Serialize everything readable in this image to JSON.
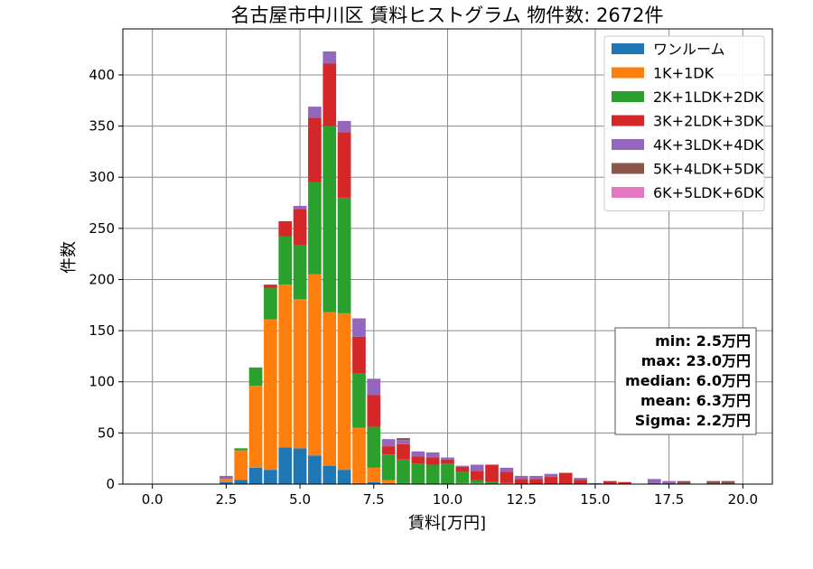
{
  "chart_data": {
    "type": "bar",
    "stacked": true,
    "title": "名古屋市中川区 賃料ヒストグラム 物件数: 2672件",
    "xlabel": "賃料[万円]",
    "ylabel": "件数",
    "xlim": [
      -1.0,
      21.0
    ],
    "ylim": [
      0,
      445
    ],
    "xticks": [
      0.0,
      2.5,
      5.0,
      7.5,
      10.0,
      12.5,
      15.0,
      17.5,
      20.0
    ],
    "xtick_labels": [
      "0.0",
      "2.5",
      "5.0",
      "7.5",
      "10.0",
      "12.5",
      "15.0",
      "17.5",
      "20.0"
    ],
    "yticks": [
      0,
      50,
      100,
      150,
      200,
      250,
      300,
      350,
      400
    ],
    "ytick_labels": [
      "0",
      "50",
      "100",
      "150",
      "200",
      "250",
      "300",
      "350",
      "400"
    ],
    "grid": true,
    "legend_position": "top-right",
    "bin_width": 0.5,
    "x": [
      2.5,
      3.0,
      3.5,
      4.0,
      4.5,
      5.0,
      5.5,
      6.0,
      6.5,
      7.0,
      7.5,
      8.0,
      8.5,
      9.0,
      9.5,
      10.0,
      10.5,
      11.0,
      11.5,
      12.0,
      12.5,
      13.0,
      13.5,
      14.0,
      14.5,
      15.0,
      15.5,
      16.0,
      16.5,
      17.0,
      17.5,
      18.0,
      18.5,
      19.0,
      19.5,
      20.0
    ],
    "series": [
      {
        "name": "ワンルーム",
        "color": "#1f77b4",
        "values": [
          2,
          4,
          16,
          14,
          36,
          35,
          28,
          18,
          14,
          1,
          2,
          1,
          1,
          0,
          0,
          0,
          0,
          0,
          0,
          0,
          0,
          0,
          0,
          0,
          0,
          0,
          0,
          0,
          0,
          0,
          0,
          0,
          0,
          0,
          0,
          0
        ]
      },
      {
        "name": "1K+1DK",
        "color": "#ff7f0e",
        "values": [
          3,
          29,
          80,
          147,
          159,
          146,
          177,
          150,
          153,
          54,
          14,
          3,
          0,
          0,
          0,
          0,
          1,
          1,
          0,
          1,
          0,
          0,
          0,
          0,
          0,
          0,
          0,
          0,
          0,
          0,
          0,
          0,
          0,
          0,
          0,
          0
        ]
      },
      {
        "name": "2K+1LDK+2DK",
        "color": "#2ca02c",
        "values": [
          0,
          2,
          18,
          31,
          47,
          53,
          90,
          182,
          113,
          53,
          40,
          25,
          23,
          20,
          19,
          20,
          11,
          3,
          2,
          0,
          0,
          0,
          0,
          0,
          0,
          0,
          0,
          0,
          0,
          0,
          0,
          0,
          0,
          0,
          0,
          0
        ]
      },
      {
        "name": "3K+2LDK+3DK",
        "color": "#d62728",
        "values": [
          0,
          0,
          0,
          3,
          15,
          35,
          63,
          61,
          64,
          36,
          31,
          8,
          15,
          7,
          7,
          4,
          5,
          9,
          17,
          11,
          5,
          5,
          7,
          11,
          4,
          0,
          3,
          2,
          0,
          1,
          1,
          0,
          0,
          0,
          0,
          0
        ]
      },
      {
        "name": "4K+3LDK+4DK",
        "color": "#9467bd",
        "values": [
          3,
          0,
          0,
          0,
          0,
          3,
          11,
          12,
          11,
          18,
          16,
          7,
          4,
          5,
          5,
          2,
          1,
          6,
          0,
          4,
          3,
          3,
          3,
          0,
          2,
          1,
          0,
          0,
          0,
          4,
          2,
          0,
          0,
          0,
          0,
          0
        ]
      },
      {
        "name": "5K+4LDK+5DK",
        "color": "#8c564b",
        "values": [
          0,
          0,
          0,
          0,
          0,
          0,
          0,
          0,
          0,
          0,
          0,
          0,
          2,
          0,
          0,
          0,
          0,
          0,
          0,
          0,
          0,
          0,
          0,
          0,
          0,
          0,
          0,
          0,
          0,
          0,
          0,
          3,
          0,
          3,
          3,
          0
        ]
      },
      {
        "name": "6K+5LDK+6DK",
        "color": "#e377c2",
        "values": [
          0,
          0,
          0,
          0,
          0,
          0,
          0,
          0,
          0,
          0,
          0,
          0,
          0,
          0,
          0,
          0,
          0,
          0,
          0,
          0,
          0,
          0,
          0,
          0,
          0,
          0,
          0,
          0,
          0,
          0,
          0,
          0,
          0,
          0,
          0,
          0
        ]
      }
    ],
    "stats_box": {
      "position": "right",
      "lines": [
        "min: 2.5万円",
        "max: 23.0万円",
        "median: 6.0万円",
        "mean: 6.3万円",
        "Sigma: 2.2万円"
      ]
    }
  }
}
